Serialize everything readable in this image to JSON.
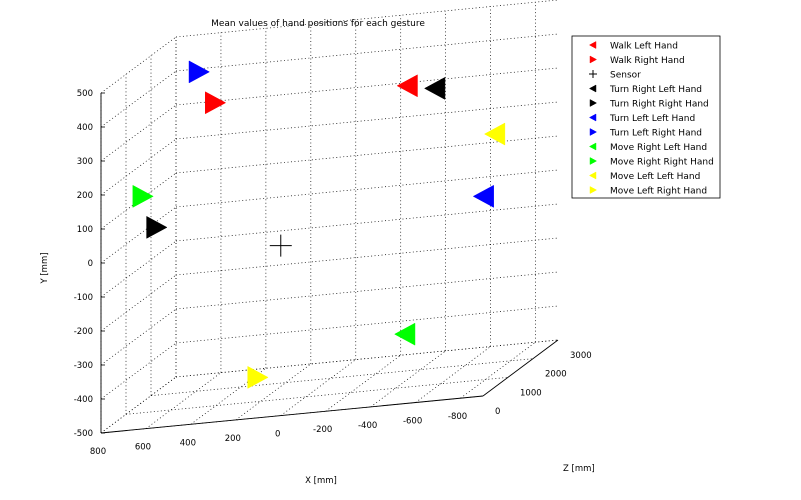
{
  "chart_data": {
    "type": "scatter",
    "projection": "3d",
    "title": "Mean values of hand positions for each gesture",
    "xlabel": "X [mm]",
    "ylabel": "Y [mm]",
    "zlabel": "Z [mm]",
    "xlim": [
      -900,
      800
    ],
    "ylim": [
      -500,
      500
    ],
    "zlim": [
      0,
      3000
    ],
    "x_ticks": [
      "800",
      "600",
      "400",
      "200",
      "0",
      "-200",
      "-400",
      "-600",
      "-800"
    ],
    "y_ticks": [
      "-500",
      "-400",
      "-300",
      "-200",
      "-100",
      "0",
      "100",
      "200",
      "300",
      "400",
      "500"
    ],
    "z_ticks": [
      "0",
      "1000",
      "2000",
      "3000"
    ],
    "grid": true,
    "legend_position": "top-right",
    "series": [
      {
        "name": "Walk Left Hand",
        "marker": "triangle-left",
        "color": "#ff0000",
        "points": [
          {
            "x": -500,
            "y": 405,
            "z": 600
          }
        ]
      },
      {
        "name": "Walk Right Hand",
        "marker": "triangle-right",
        "color": "#ff0000",
        "points": [
          {
            "x": 350,
            "y": 415,
            "z": 500
          }
        ]
      },
      {
        "name": "Sensor",
        "marker": "plus",
        "color": "#000000",
        "points": [
          {
            "x": 0,
            "y": 0,
            "z": 0
          }
        ]
      },
      {
        "name": "Turn Right Left Hand",
        "marker": "triangle-left",
        "color": "#000000",
        "points": [
          {
            "x": -600,
            "y": 380,
            "z": 800
          }
        ]
      },
      {
        "name": "Turn Right Right Hand",
        "marker": "triangle-right",
        "color": "#000000",
        "points": [
          {
            "x": 600,
            "y": 70,
            "z": 400
          }
        ]
      },
      {
        "name": "Turn Left Left Hand",
        "marker": "triangle-left",
        "color": "#0000ff",
        "points": [
          {
            "x": -750,
            "y": 20,
            "z": 1400
          }
        ]
      },
      {
        "name": "Turn Left Right Hand",
        "marker": "triangle-right",
        "color": "#0000ff",
        "points": [
          {
            "x": 400,
            "y": 520,
            "z": 300
          }
        ]
      },
      {
        "name": "Move Right Left Hand",
        "marker": "triangle-left",
        "color": "#00ff00",
        "points": [
          {
            "x": -500,
            "y": -320,
            "z": 500
          }
        ]
      },
      {
        "name": "Move Right Right Hand",
        "marker": "triangle-right",
        "color": "#00ff00",
        "points": [
          {
            "x": 650,
            "y": 170,
            "z": 300
          }
        ]
      },
      {
        "name": "Move Left Left Hand",
        "marker": "triangle-left",
        "color": "#ffff00",
        "points": [
          {
            "x": -800,
            "y": 200,
            "z": 1400
          }
        ]
      },
      {
        "name": "Move Left Right Hand",
        "marker": "triangle-right",
        "color": "#ffff00",
        "points": [
          {
            "x": 150,
            "y": -400,
            "z": 400
          }
        ]
      }
    ]
  }
}
